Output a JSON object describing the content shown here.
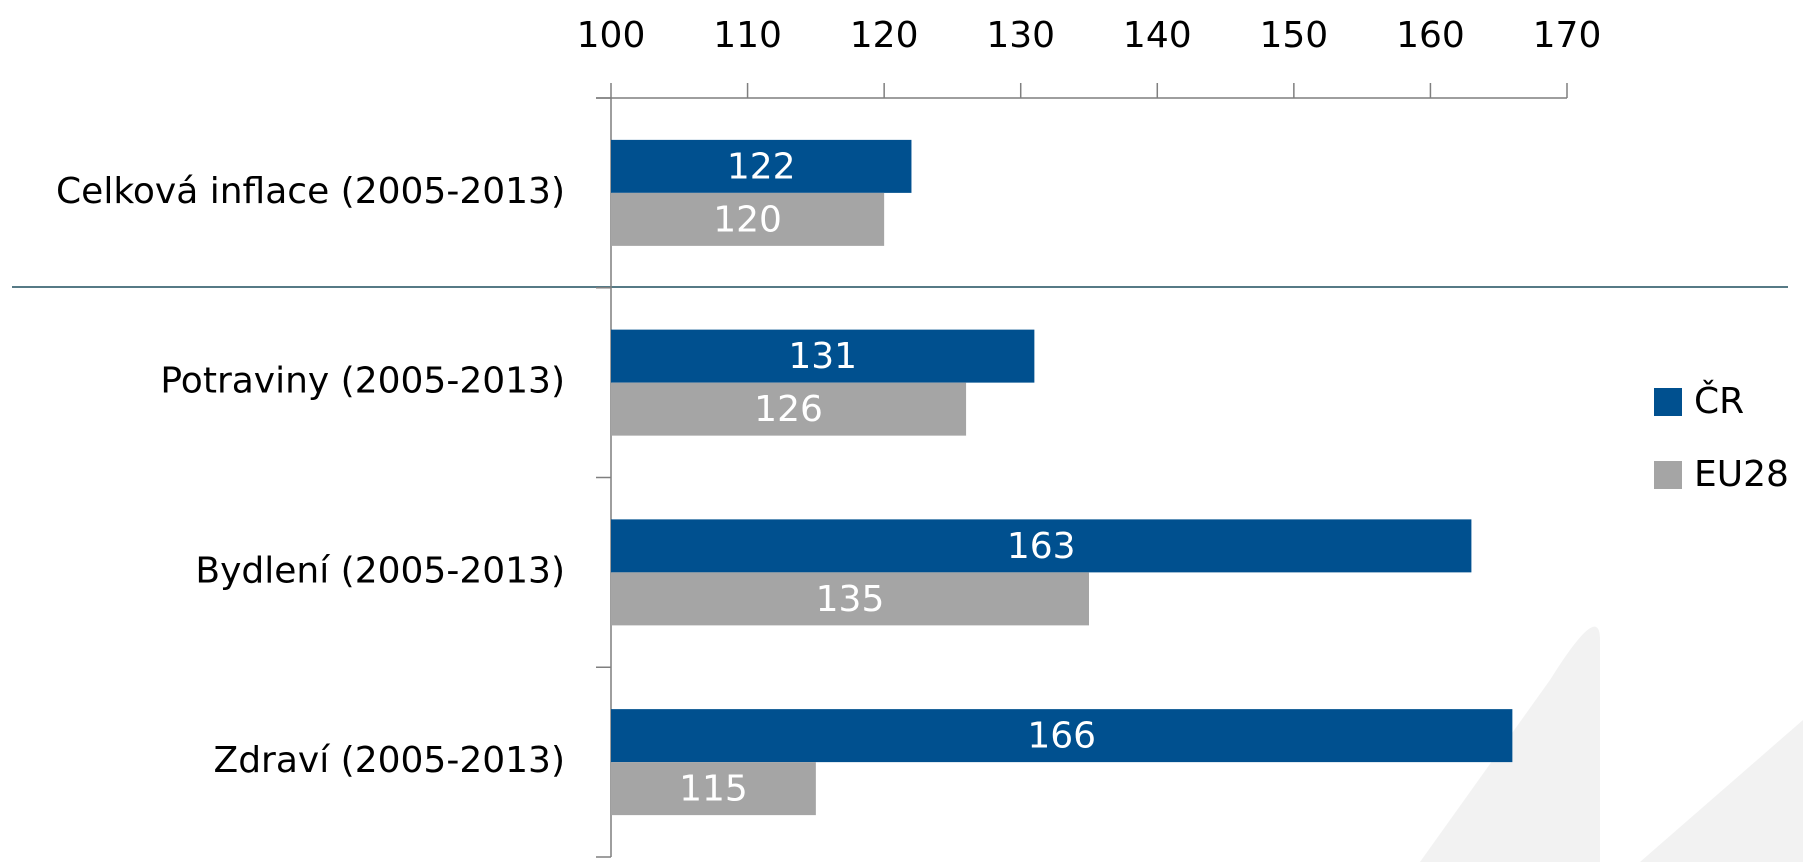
{
  "chart_data": {
    "type": "bar",
    "orientation": "horizontal",
    "categories": [
      "Celková inflace (2005-2013)",
      "Potraviny (2005-2013)",
      "Bydlení (2005-2013)",
      "Zdraví (2005-2013)"
    ],
    "series": [
      {
        "name": "ČR",
        "color": "#00508f",
        "values": [
          122,
          131,
          163,
          166
        ]
      },
      {
        "name": "EU28",
        "color": "#a5a5a5",
        "values": [
          120,
          126,
          135,
          115
        ]
      }
    ],
    "xlim": [
      100,
      170
    ],
    "xticks": [
      100,
      110,
      120,
      130,
      140,
      150,
      160,
      170
    ],
    "legend": "right"
  }
}
